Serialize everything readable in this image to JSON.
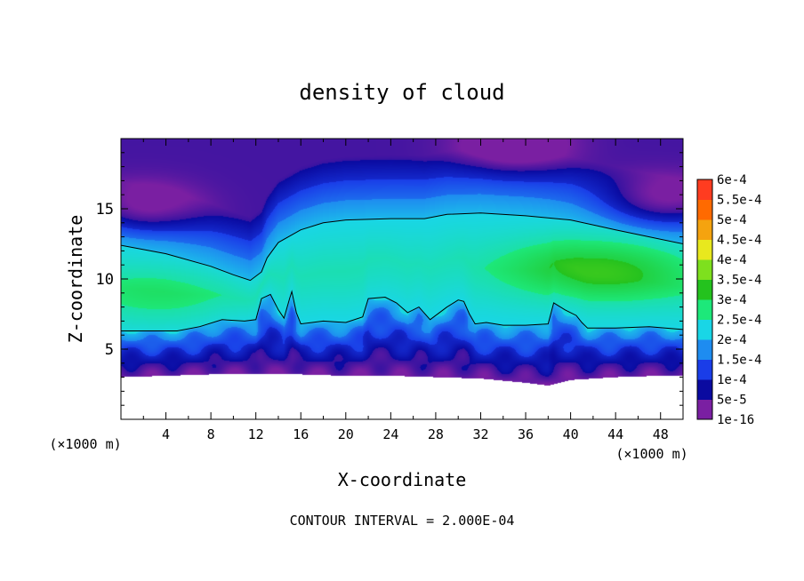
{
  "chart_data": {
    "type": "heatmap",
    "title": "density of cloud",
    "xlabel": "X-coordinate",
    "ylabel": "Z-coordinate",
    "x_unit": "(×1000 m)",
    "y_unit": "(×1000 m)",
    "footer": "CONTOUR INTERVAL = 2.000E-04",
    "xlim": [
      0,
      50
    ],
    "ylim": [
      0,
      20
    ],
    "x_ticks": [
      4,
      8,
      12,
      16,
      20,
      24,
      28,
      32,
      36,
      40,
      44,
      48
    ],
    "y_ticks": [
      5,
      10,
      15
    ],
    "contour_interval": 0.0002,
    "colorbar": {
      "labels": [
        "1e-16",
        "5e-5",
        "1e-4",
        "1.5e-4",
        "2e-4",
        "2.5e-4",
        "3e-4",
        "3.5e-4",
        "4e-4",
        "4.5e-4",
        "5e-4",
        "5.5e-4",
        "6e-4"
      ],
      "values": [
        1e-16,
        5e-05,
        0.0001,
        0.00015,
        0.0002,
        0.00025,
        0.0003,
        0.00035,
        0.0004,
        0.00045,
        0.0005,
        0.00055,
        0.0006
      ],
      "colors": [
        "#7a1fa2",
        "#0a0aa0",
        "#1a3de8",
        "#1e8cf0",
        "#19d6e6",
        "#1de87a",
        "#24c21e",
        "#7ee01e",
        "#e8e81e",
        "#f5a30f",
        "#ff6a00",
        "#ff3c20",
        "#ff9a9a"
      ]
    },
    "contour_level": 0.0002,
    "contour_upper_z": [
      [
        0,
        12.4
      ],
      [
        4,
        11.8
      ],
      [
        8,
        10.9
      ],
      [
        10,
        10.3
      ],
      [
        11.5,
        9.9
      ],
      [
        12.5,
        10.5
      ],
      [
        13,
        11.5
      ],
      [
        14,
        12.6
      ],
      [
        16,
        13.5
      ],
      [
        18,
        14.0
      ],
      [
        20,
        14.2
      ],
      [
        24,
        14.3
      ],
      [
        27,
        14.3
      ],
      [
        29,
        14.6
      ],
      [
        32,
        14.7
      ],
      [
        36,
        14.5
      ],
      [
        40,
        14.2
      ],
      [
        44,
        13.5
      ],
      [
        50,
        12.5
      ]
    ],
    "contour_lower_z": [
      [
        0,
        6.3
      ],
      [
        5,
        6.3
      ],
      [
        7,
        6.6
      ],
      [
        9,
        7.1
      ],
      [
        11,
        7.0
      ],
      [
        12,
        7.1
      ],
      [
        12.5,
        8.6
      ],
      [
        13.3,
        8.9
      ],
      [
        14,
        7.8
      ],
      [
        14.5,
        7.2
      ],
      [
        15,
        8.6
      ],
      [
        15.2,
        9.1
      ],
      [
        15.6,
        7.6
      ],
      [
        16,
        6.8
      ],
      [
        17,
        6.9
      ],
      [
        18,
        7.0
      ],
      [
        20,
        6.9
      ],
      [
        21.5,
        7.3
      ],
      [
        22,
        8.6
      ],
      [
        23.5,
        8.7
      ],
      [
        24.5,
        8.3
      ],
      [
        25.5,
        7.6
      ],
      [
        26.5,
        8.0
      ],
      [
        27.5,
        7.1
      ],
      [
        29,
        8.0
      ],
      [
        30,
        8.5
      ],
      [
        30.5,
        8.4
      ],
      [
        31,
        7.5
      ],
      [
        31.5,
        6.8
      ],
      [
        32.5,
        6.9
      ],
      [
        34,
        6.7
      ],
      [
        36,
        6.7
      ],
      [
        38,
        6.8
      ],
      [
        38.5,
        8.3
      ],
      [
        39.5,
        7.8
      ],
      [
        40.5,
        7.4
      ],
      [
        41,
        6.9
      ],
      [
        41.5,
        6.5
      ],
      [
        44,
        6.5
      ],
      [
        47,
        6.6
      ],
      [
        50,
        6.4
      ]
    ],
    "cloud_base_z": [
      [
        0,
        3.0
      ],
      [
        4,
        3.1
      ],
      [
        8,
        3.2
      ],
      [
        12,
        3.2
      ],
      [
        16,
        3.2
      ],
      [
        20,
        3.1
      ],
      [
        24,
        3.1
      ],
      [
        28,
        3.0
      ],
      [
        32,
        2.9
      ],
      [
        36,
        2.6
      ],
      [
        38,
        2.4
      ],
      [
        40,
        2.8
      ],
      [
        44,
        3.0
      ],
      [
        48,
        3.1
      ],
      [
        50,
        3.1
      ]
    ],
    "maxima": [
      {
        "x": 3,
        "z": 8.8,
        "value": 0.00024
      },
      {
        "x": 20,
        "z": 10.2,
        "value": 0.00021
      },
      {
        "x": 40,
        "z": 10.8,
        "value": 0.00026
      },
      {
        "x": 46,
        "z": 10.5,
        "value": 0.00025
      }
    ],
    "minima_upper": [
      {
        "x": 2,
        "z": 15.0,
        "value": 9e-05
      },
      {
        "x": 35,
        "z": 19.5,
        "value": 1e-05
      },
      {
        "x": 48,
        "z": 15.5,
        "value": 8e-05
      }
    ]
  }
}
